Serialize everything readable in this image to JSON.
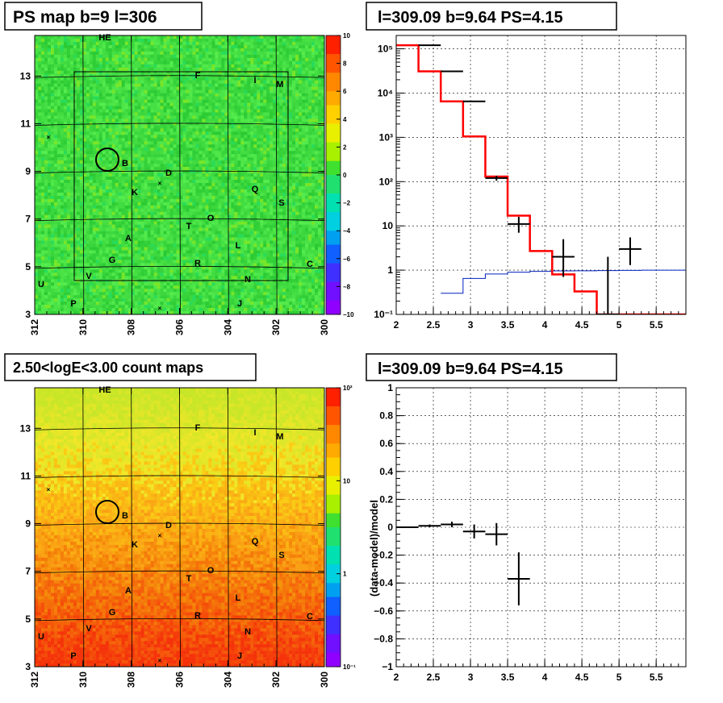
{
  "panels": {
    "ps_map": {
      "title": "PS map b=9 l=306",
      "x_ticks": [
        "312",
        "310",
        "308",
        "306",
        "304",
        "302",
        "300"
      ],
      "y_ticks": [
        "3",
        "5",
        "7",
        "9",
        "11",
        "13"
      ],
      "colorbar_ticks": [
        "10",
        "8",
        "6",
        "4",
        "2",
        "0",
        "−2",
        "−4",
        "−6",
        "−8",
        "−10"
      ]
    },
    "count_map": {
      "title": "2.50<logE<3.00 count maps",
      "x_ticks": [
        "312",
        "310",
        "308",
        "306",
        "304",
        "302",
        "300"
      ],
      "y_ticks": [
        "3",
        "5",
        "7",
        "9",
        "11",
        "13"
      ],
      "colorbar_ticks": [
        "10²",
        "10",
        "1",
        "10⁻¹"
      ]
    },
    "spectrum": {
      "title": "l=309.09 b=9.64 PS=4.15"
    },
    "residual": {
      "title": "l=309.09 b=9.64 PS=4.15",
      "ylabel": "(data-model)/model"
    }
  },
  "map_labels": [
    "HE",
    "F",
    "I",
    "M",
    "B",
    "D",
    "K",
    "Q",
    "S",
    "O",
    "T",
    "A",
    "L",
    "G",
    "R",
    "C",
    "V",
    "N",
    "U",
    "P",
    "J"
  ],
  "chart_data": [
    {
      "type": "line",
      "title": "l=309.09 b=9.64 PS=4.15",
      "xlim": [
        2,
        5.9
      ],
      "ylim": [
        0.1,
        200000
      ],
      "yscale": "log",
      "grid": true,
      "x_ticks": [
        "2",
        "2.5",
        "3",
        "3.5",
        "4",
        "4.5",
        "5",
        "5.5"
      ],
      "y_ticks": [
        "10⁻¹",
        "1",
        "10",
        "10²",
        "10³",
        "10⁴",
        "10⁵"
      ],
      "series": [
        {
          "style": "step-red",
          "edges": [
            2.0,
            2.3,
            2.6,
            2.9,
            3.2,
            3.5,
            3.8,
            4.1,
            4.4,
            4.7,
            5.9
          ],
          "values": [
            120000,
            31000,
            6500,
            1050,
            130,
            17,
            2.7,
            0.8,
            0.33,
            0.1
          ]
        },
        {
          "style": "step-blue",
          "edges": [
            2.6,
            2.9,
            3.2,
            3.5,
            3.8,
            4.1,
            4.4,
            4.7,
            5.0,
            5.3,
            5.9
          ],
          "values": [
            0.3,
            0.65,
            0.82,
            0.9,
            0.94,
            0.96,
            0.97,
            0.98,
            0.99,
            1.0
          ]
        },
        {
          "style": "points-black",
          "x": [
            2.45,
            2.75,
            3.05,
            3.35,
            3.65,
            4.25,
            4.85,
            5.15
          ],
          "y": [
            120000,
            31000,
            6500,
            120,
            11,
            2,
            0.1,
            3
          ],
          "xerr": [
            0.15,
            0.15,
            0.15,
            0.15,
            0.15,
            0.15,
            0.15,
            0.15
          ],
          "ylo": [
            119000,
            30500,
            6400,
            105,
            7,
            0.7,
            0.1,
            1.3
          ],
          "yhi": [
            121000,
            31500,
            6600,
            135,
            16,
            5,
            2,
            5.5
          ]
        }
      ]
    },
    {
      "type": "scatter",
      "title": "l=309.09 b=9.64 PS=4.15",
      "ylabel": "(data-model)/model",
      "xlim": [
        2,
        5.9
      ],
      "ylim": [
        -1,
        1
      ],
      "grid": true,
      "x_ticks": [
        "2",
        "2.5",
        "3",
        "3.5",
        "4",
        "4.5",
        "5",
        "5.5"
      ],
      "y_ticks": [
        "−1",
        "−0.8",
        "−0.6",
        "−0.4",
        "−0.2",
        "0",
        "0.2",
        "0.4",
        "0.6",
        "0.8",
        "1"
      ],
      "series": [
        {
          "x": [
            2.15,
            2.45,
            2.75,
            3.05,
            3.35,
            3.65
          ],
          "y": [
            0.0,
            0.01,
            0.02,
            -0.03,
            -0.05,
            -0.37
          ],
          "xerr": [
            0.15,
            0.15,
            0.15,
            0.15,
            0.15,
            0.15
          ],
          "yerr": [
            0.005,
            0.01,
            0.02,
            0.05,
            0.08,
            0.19
          ]
        }
      ]
    }
  ]
}
